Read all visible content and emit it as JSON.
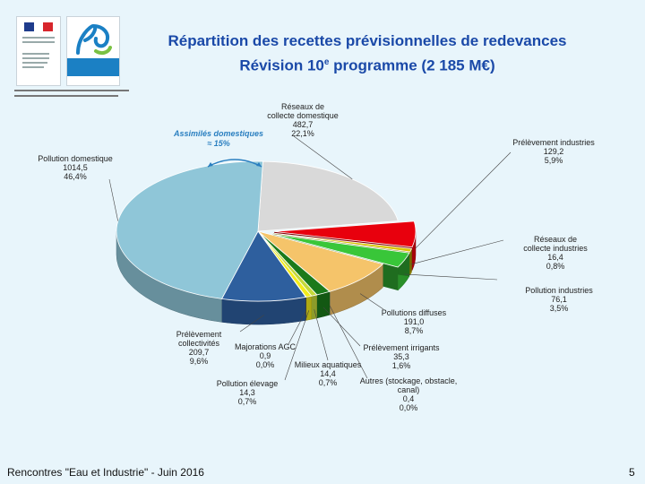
{
  "title_line1": "Répartition des recettes prévisionnelles de redevances",
  "title_line2_prefix": "Révision 10",
  "title_line2_sup": "e",
  "title_line2_suffix": " programme (2 185 M€)",
  "footer_text": "Rencontres \"Eau et Industrie\" - Juin 2016",
  "page_number": "5",
  "assimiles": {
    "label": "Assimilés domestiques",
    "value": "≈ 15%"
  },
  "chart_data": {
    "type": "pie",
    "title": "Répartition des recettes prévisionnelles de redevances — Révision 10e programme (2 185 M€)",
    "slices": [
      {
        "key": "reseaux_dom",
        "name": "Réseaux de collecte domestique",
        "value": 482.7,
        "value_label": "482,7",
        "percent": "22,1%",
        "color": "#d9d9d9",
        "exploded": false
      },
      {
        "key": "prel_ind",
        "name": "Prélèvement industries",
        "value": 129.2,
        "value_label": "129,2",
        "percent": "5,9%",
        "color": "#e8000d",
        "exploded": true
      },
      {
        "key": "reseaux_ind",
        "name": "Réseaux de collecte industries",
        "value": 16.4,
        "value_label": "16,4",
        "percent": "0,8%",
        "color": "#d9c400",
        "exploded": true
      },
      {
        "key": "poll_ind",
        "name": "Pollution industries",
        "value": 76.1,
        "value_label": "76,1",
        "percent": "3,5%",
        "color": "#39c639",
        "exploded": true
      },
      {
        "key": "poll_diff",
        "name": "Pollutions diffuses",
        "value": 191.0,
        "value_label": "191,0",
        "percent": "8,7%",
        "color": "#f5c46a",
        "exploded": false
      },
      {
        "key": "autres",
        "name": "Autres (stockage, obstacle, canal)",
        "value": 0.4,
        "value_label": "0,4",
        "percent": "0,0%",
        "color": "#d0d0d0",
        "exploded": false
      },
      {
        "key": "prel_irrig",
        "name": "Prélèvement irrigants",
        "value": 35.3,
        "value_label": "35,3",
        "percent": "1,6%",
        "color": "#1b7a1b",
        "exploded": false
      },
      {
        "key": "milieux",
        "name": "Milieux aquatiques",
        "value": 14.4,
        "value_label": "14,4",
        "percent": "0,7%",
        "color": "#c4d93a",
        "exploded": false
      },
      {
        "key": "poll_elev",
        "name": "Pollution élevage",
        "value": 14.3,
        "value_label": "14,3",
        "percent": "0,7%",
        "color": "#f3ec1c",
        "exploded": false
      },
      {
        "key": "maj_agc",
        "name": "Majorations AGC",
        "value": 0.9,
        "value_label": "0,9",
        "percent": "0,0%",
        "color": "#9a6b1d",
        "exploded": false
      },
      {
        "key": "prel_coll",
        "name": "Prélèvement collectivités",
        "value": 209.7,
        "value_label": "209,7",
        "percent": "9,6%",
        "color": "#2e5f9e",
        "exploded": false
      },
      {
        "key": "poll_dom",
        "name": "Pollution domestique",
        "value": 1014.5,
        "value_label": "1014,5",
        "percent": "46,4%",
        "color": "#8fc6d8",
        "exploded": false
      }
    ]
  }
}
